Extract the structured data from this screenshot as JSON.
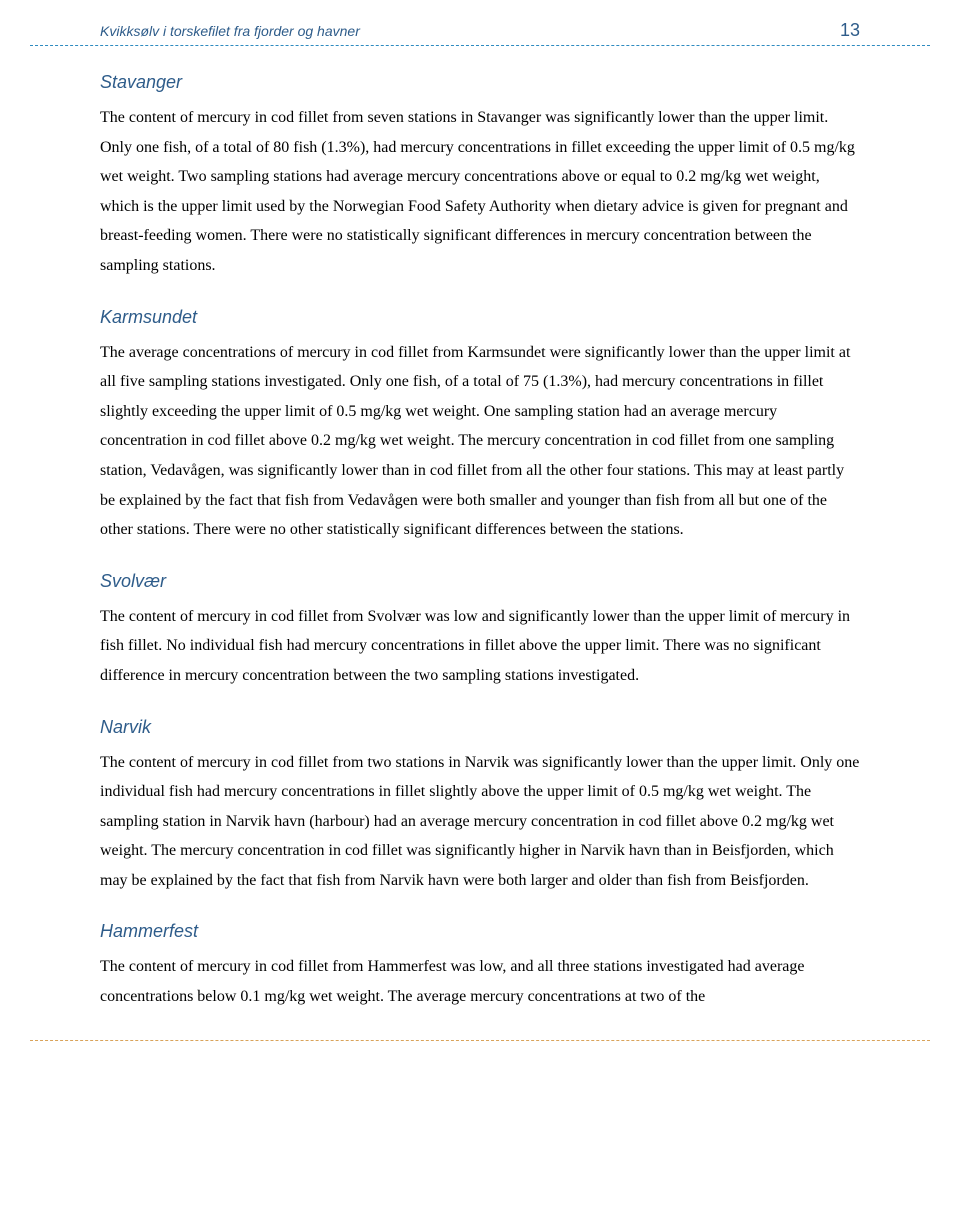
{
  "header": {
    "title": "Kvikksølv i torskefilet fra fjorder og havner",
    "page_number": "13"
  },
  "colors": {
    "heading_color": "#2e5c8a",
    "top_rule_color": "#2e8bc0",
    "bottom_rule_color": "#d9a35a",
    "body_text_color": "#000000",
    "background": "#ffffff"
  },
  "typography": {
    "heading_font": "Verdana",
    "heading_style": "italic",
    "heading_size_pt": 14,
    "body_font": "Times New Roman",
    "body_size_pt": 12,
    "line_height": 1.85
  },
  "sections": [
    {
      "heading": "Stavanger",
      "body": "The content of mercury in cod fillet from seven stations in Stavanger was significantly lower than the upper limit. Only one fish, of a total of 80 fish (1.3%), had mercury concentrations in fillet exceeding the upper limit of 0.5 mg/kg wet weight. Two sampling stations had average mercury concentrations above or equal to 0.2 mg/kg wet weight, which is the upper limit used by the Norwegian Food Safety Authority when dietary advice is given for pregnant and breast-feeding women. There were no statistically significant differences in mercury concentration between the sampling stations."
    },
    {
      "heading": "Karmsundet",
      "body": "The average concentrations of mercury in cod fillet from Karmsundet were significantly lower than the upper limit at all five sampling stations investigated. Only one fish, of a total of 75 (1.3%), had mercury concentrations in fillet slightly exceeding the upper limit of 0.5 mg/kg wet weight. One sampling station had an average mercury concentration in cod fillet above 0.2 mg/kg wet weight. The mercury concentration in cod fillet from one sampling station, Vedavågen, was significantly lower than in cod fillet from all the other four stations. This may at least partly be explained by the fact that fish from Vedavågen were both smaller and younger than fish from all but one of the other stations. There were no other statistically significant differences between the stations."
    },
    {
      "heading": "Svolvær",
      "body": "The content of mercury in cod fillet from Svolvær was low and significantly lower than the upper limit of mercury in fish fillet. No individual fish had mercury concentrations in fillet above the upper limit. There was no significant difference in mercury concentration between the two sampling stations investigated."
    },
    {
      "heading": "Narvik",
      "body": "The content of mercury in cod fillet from two stations in Narvik was significantly lower than the upper limit. Only one individual fish had mercury concentrations in fillet slightly above the upper limit of 0.5 mg/kg wet weight. The sampling station in Narvik havn (harbour) had an average mercury concentration in cod fillet above 0.2 mg/kg wet weight. The mercury concentration in cod fillet was significantly higher in Narvik havn than in Beisfjorden, which may be explained by the fact that fish from Narvik havn were both larger and older than fish from Beisfjorden."
    },
    {
      "heading": "Hammerfest",
      "body": "The content of mercury in cod fillet from Hammerfest was low, and all three stations investigated had average concentrations below 0.1 mg/kg wet weight. The average mercury concentrations at two of the"
    }
  ]
}
